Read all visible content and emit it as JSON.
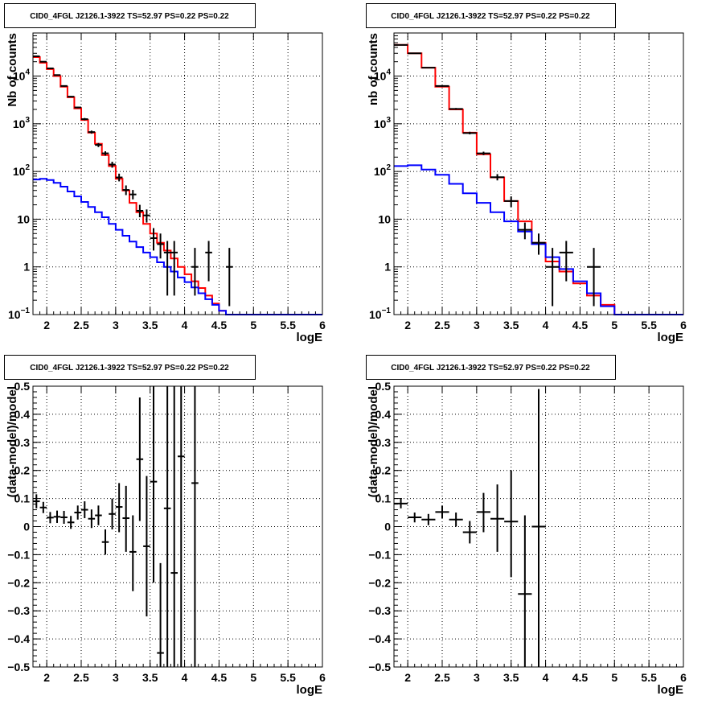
{
  "chart_data": [
    {
      "type": "line",
      "title": "CID0_4FGL J2126.1-3922 TS=52.97 PS=0.22 PS=0.22",
      "xlabel": "logE",
      "ylabel": "Nb of counts",
      "xlim": [
        1.8,
        6.0
      ],
      "ylim": [
        0.1,
        80000
      ],
      "yscale": "log",
      "grid": true,
      "xticks": [
        "2",
        "2.5",
        "3",
        "3.5",
        "4",
        "4.5",
        "5",
        "5.5",
        "6"
      ],
      "yticks": [
        "10⁻¹",
        "1",
        "10",
        "10²",
        "10³",
        "10⁴"
      ],
      "series": [
        {
          "color": "#ff0000",
          "style": "step",
          "edges": [
            1.8,
            1.9,
            2.0,
            2.1,
            2.2,
            2.3,
            2.4,
            2.5,
            2.6,
            2.7,
            2.8,
            2.9,
            3.0,
            3.1,
            3.2,
            3.3,
            3.4,
            3.5,
            3.6,
            3.7,
            3.8,
            3.9,
            4.0,
            4.1,
            4.2,
            4.3,
            4.4,
            4.5,
            4.6,
            4.7,
            4.8,
            4.9,
            5.0,
            5.5,
            6.0
          ],
          "values": [
            25000,
            19000,
            14000,
            10000,
            6000,
            3600,
            2100,
            1200,
            650,
            380,
            220,
            130,
            70,
            40,
            22,
            14,
            8,
            5,
            3.2,
            2.2,
            1.5,
            1.0,
            0.7,
            0.5,
            0.36,
            0.25,
            0.17,
            0.12,
            0.1,
            0.1,
            0.1,
            0.1,
            0.1,
            0.1
          ]
        },
        {
          "color": "#0000ff",
          "style": "step",
          "edges": [
            1.8,
            1.9,
            2.0,
            2.1,
            2.2,
            2.3,
            2.4,
            2.5,
            2.6,
            2.7,
            2.8,
            2.9,
            3.0,
            3.1,
            3.2,
            3.3,
            3.4,
            3.5,
            3.6,
            3.7,
            3.8,
            3.9,
            4.0,
            4.1,
            4.2,
            4.3,
            4.4,
            4.5,
            4.6,
            4.7,
            4.8,
            4.9,
            5.0,
            5.5,
            6.0
          ],
          "values": [
            68,
            70,
            66,
            58,
            48,
            38,
            30,
            23,
            18,
            14,
            11,
            8,
            6,
            4.5,
            3.4,
            2.6,
            2.0,
            1.6,
            1.25,
            1.0,
            0.8,
            0.6,
            0.48,
            0.37,
            0.28,
            0.21,
            0.16,
            0.12,
            0.1,
            0.1,
            0.1,
            0.1,
            0.1,
            0.1
          ]
        },
        {
          "color": "#000000",
          "style": "errorbar",
          "points": [
            {
              "x": 1.85,
              "y": 26000,
              "dx": 0.05,
              "ylo": 25500,
              "yhi": 26500
            },
            {
              "x": 1.95,
              "y": 20000,
              "dx": 0.05,
              "ylo": 19600,
              "yhi": 20400
            },
            {
              "x": 2.05,
              "y": 14500,
              "dx": 0.05,
              "ylo": 14200,
              "yhi": 14800
            },
            {
              "x": 2.15,
              "y": 10500,
              "dx": 0.05,
              "ylo": 10200,
              "yhi": 10800
            },
            {
              "x": 2.25,
              "y": 6200,
              "dx": 0.05,
              "ylo": 6000,
              "yhi": 6400
            },
            {
              "x": 2.35,
              "y": 3700,
              "dx": 0.05,
              "ylo": 3580,
              "yhi": 3820
            },
            {
              "x": 2.45,
              "y": 2200,
              "dx": 0.05,
              "ylo": 2110,
              "yhi": 2290
            },
            {
              "x": 2.55,
              "y": 1250,
              "dx": 0.05,
              "ylo": 1180,
              "yhi": 1320
            },
            {
              "x": 2.65,
              "y": 670,
              "dx": 0.05,
              "ylo": 620,
              "yhi": 720
            },
            {
              "x": 2.75,
              "y": 360,
              "dx": 0.05,
              "ylo": 325,
              "yhi": 395
            },
            {
              "x": 2.85,
              "y": 240,
              "dx": 0.05,
              "ylo": 215,
              "yhi": 265
            },
            {
              "x": 2.95,
              "y": 140,
              "dx": 0.05,
              "ylo": 120,
              "yhi": 160
            },
            {
              "x": 3.05,
              "y": 75,
              "dx": 0.05,
              "ylo": 62,
              "yhi": 90
            },
            {
              "x": 3.15,
              "y": 41,
              "dx": 0.05,
              "ylo": 32,
              "yhi": 51
            },
            {
              "x": 3.25,
              "y": 33,
              "dx": 0.05,
              "ylo": 26,
              "yhi": 41
            },
            {
              "x": 3.35,
              "y": 15,
              "dx": 0.05,
              "ylo": 11,
              "yhi": 20
            },
            {
              "x": 3.45,
              "y": 12,
              "dx": 0.05,
              "ylo": 8.5,
              "yhi": 16
            },
            {
              "x": 3.55,
              "y": 4,
              "dx": 0.05,
              "ylo": 2.2,
              "yhi": 6.5
            },
            {
              "x": 3.65,
              "y": 3,
              "dx": 0.05,
              "ylo": 1.5,
              "yhi": 5
            },
            {
              "x": 3.75,
              "y": 2,
              "dx": 0.05,
              "ylo": 0.25,
              "yhi": 3.5
            },
            {
              "x": 3.85,
              "y": 2,
              "dx": 0.05,
              "ylo": 0.25,
              "yhi": 3.5
            },
            {
              "x": 4.15,
              "y": 1,
              "dx": 0.05,
              "ylo": 0.25,
              "yhi": 2.5
            },
            {
              "x": 4.35,
              "y": 2,
              "dx": 0.05,
              "ylo": 0.5,
              "yhi": 3.5
            },
            {
              "x": 4.65,
              "y": 1,
              "dx": 0.05,
              "ylo": 0.15,
              "yhi": 2.5
            }
          ]
        }
      ]
    },
    {
      "type": "line",
      "title": "CID0_4FGL J2126.1-3922 TS=52.97 PS=0.22 PS=0.22",
      "xlabel": "logE",
      "ylabel": "nb of counts",
      "xlim": [
        1.8,
        6.0
      ],
      "ylim": [
        0.1,
        80000
      ],
      "yscale": "log",
      "grid": true,
      "xticks": [
        "2",
        "2.5",
        "3",
        "3.5",
        "4",
        "4.5",
        "5",
        "5.5",
        "6"
      ],
      "yticks": [
        "10⁻¹",
        "1",
        "10",
        "10²",
        "10³",
        "10⁴"
      ],
      "series": [
        {
          "color": "#ff0000",
          "style": "step",
          "edges": [
            1.8,
            2.0,
            2.2,
            2.4,
            2.6,
            2.8,
            3.0,
            3.2,
            3.4,
            3.6,
            3.8,
            4.0,
            4.2,
            4.4,
            4.6,
            4.8,
            5.0,
            6.0
          ],
          "values": [
            45000,
            30000,
            15000,
            6000,
            2000,
            650,
            230,
            75,
            24,
            9,
            3.2,
            1.3,
            0.8,
            0.45,
            0.25,
            0.16,
            0.1
          ]
        },
        {
          "color": "#0000ff",
          "style": "step",
          "edges": [
            1.8,
            2.0,
            2.2,
            2.4,
            2.6,
            2.8,
            3.0,
            3.2,
            3.4,
            3.6,
            3.8,
            4.0,
            4.2,
            4.4,
            4.6,
            4.8,
            5.0,
            6.0
          ],
          "values": [
            130,
            135,
            110,
            85,
            55,
            35,
            22,
            14,
            9,
            5.5,
            3.0,
            1.6,
            0.9,
            0.5,
            0.28,
            0.15,
            0.1
          ]
        },
        {
          "color": "#000000",
          "style": "errorbar",
          "points": [
            {
              "x": 1.9,
              "y": 45000,
              "dx": 0.1,
              "ylo": 44500,
              "yhi": 45500
            },
            {
              "x": 2.1,
              "y": 30000,
              "dx": 0.1,
              "ylo": 29600,
              "yhi": 30400
            },
            {
              "x": 2.3,
              "y": 15000,
              "dx": 0.1,
              "ylo": 14700,
              "yhi": 15300
            },
            {
              "x": 2.5,
              "y": 6200,
              "dx": 0.1,
              "ylo": 6000,
              "yhi": 6400
            },
            {
              "x": 2.7,
              "y": 2050,
              "dx": 0.1,
              "ylo": 1960,
              "yhi": 2140
            },
            {
              "x": 2.9,
              "y": 640,
              "dx": 0.1,
              "ylo": 600,
              "yhi": 680
            },
            {
              "x": 3.1,
              "y": 240,
              "dx": 0.1,
              "ylo": 220,
              "yhi": 260
            },
            {
              "x": 3.3,
              "y": 76,
              "dx": 0.1,
              "ylo": 65,
              "yhi": 88
            },
            {
              "x": 3.5,
              "y": 24,
              "dx": 0.1,
              "ylo": 18,
              "yhi": 30
            },
            {
              "x": 3.7,
              "y": 6,
              "dx": 0.1,
              "ylo": 3.8,
              "yhi": 8.5
            },
            {
              "x": 3.9,
              "y": 3.2,
              "dx": 0.1,
              "ylo": 1.8,
              "yhi": 5
            },
            {
              "x": 4.1,
              "y": 1,
              "dx": 0.1,
              "ylo": 0.15,
              "yhi": 2.5
            },
            {
              "x": 4.3,
              "y": 2,
              "dx": 0.1,
              "ylo": 0.5,
              "yhi": 3.5
            },
            {
              "x": 4.7,
              "y": 1,
              "dx": 0.1,
              "ylo": 0.15,
              "yhi": 2.5
            }
          ]
        }
      ]
    },
    {
      "type": "scatter",
      "title": "CID0_4FGL J2126.1-3922 TS=52.97 PS=0.22 PS=0.22",
      "xlabel": "logE",
      "ylabel": "(data-model)/model",
      "xlim": [
        1.8,
        6.0
      ],
      "ylim": [
        -0.5,
        0.5
      ],
      "grid": true,
      "xticks": [
        "2",
        "2.5",
        "3",
        "3.5",
        "4",
        "4.5",
        "5",
        "5.5",
        "6"
      ],
      "yticks": [
        "−0.5",
        "−0.4",
        "−0.3",
        "−0.2",
        "−0.1",
        "0",
        "0.1",
        "0.2",
        "0.3",
        "0.4",
        "0.5"
      ],
      "series": [
        {
          "color": "#000000",
          "style": "errorbar",
          "points": [
            {
              "x": 1.85,
              "y": 0.09,
              "dx": 0.05,
              "ylo": 0.065,
              "yhi": 0.115
            },
            {
              "x": 1.95,
              "y": 0.068,
              "dx": 0.05,
              "ylo": 0.048,
              "yhi": 0.088
            },
            {
              "x": 2.05,
              "y": 0.032,
              "dx": 0.05,
              "ylo": 0.012,
              "yhi": 0.052
            },
            {
              "x": 2.15,
              "y": 0.035,
              "dx": 0.05,
              "ylo": 0.013,
              "yhi": 0.057
            },
            {
              "x": 2.25,
              "y": 0.033,
              "dx": 0.05,
              "ylo": 0.01,
              "yhi": 0.056
            },
            {
              "x": 2.35,
              "y": 0.015,
              "dx": 0.05,
              "ylo": -0.008,
              "yhi": 0.038
            },
            {
              "x": 2.45,
              "y": 0.05,
              "dx": 0.05,
              "ylo": 0.025,
              "yhi": 0.075
            },
            {
              "x": 2.55,
              "y": 0.06,
              "dx": 0.05,
              "ylo": 0.03,
              "yhi": 0.09
            },
            {
              "x": 2.65,
              "y": 0.028,
              "dx": 0.05,
              "ylo": -0.005,
              "yhi": 0.061
            },
            {
              "x": 2.75,
              "y": 0.04,
              "dx": 0.05,
              "ylo": 0.005,
              "yhi": 0.075
            },
            {
              "x": 2.85,
              "y": -0.055,
              "dx": 0.05,
              "ylo": -0.1,
              "yhi": -0.01
            },
            {
              "x": 2.95,
              "y": 0.045,
              "dx": 0.05,
              "ylo": -0.01,
              "yhi": 0.1
            },
            {
              "x": 3.05,
              "y": 0.07,
              "dx": 0.05,
              "ylo": -0.02,
              "yhi": 0.155
            },
            {
              "x": 3.15,
              "y": 0.03,
              "dx": 0.05,
              "ylo": -0.09,
              "yhi": 0.145
            },
            {
              "x": 3.25,
              "y": -0.09,
              "dx": 0.05,
              "ylo": -0.23,
              "yhi": 0.04
            },
            {
              "x": 3.35,
              "y": 0.24,
              "dx": 0.05,
              "ylo": 0.02,
              "yhi": 0.46
            },
            {
              "x": 3.45,
              "y": -0.07,
              "dx": 0.05,
              "ylo": -0.32,
              "yhi": 0.18
            },
            {
              "x": 3.55,
              "y": 0.16,
              "dx": 0.05,
              "ylo": -0.2,
              "yhi": 0.5
            },
            {
              "x": 3.65,
              "y": -0.45,
              "dx": 0.05,
              "ylo": -0.5,
              "yhi": -0.13
            },
            {
              "x": 3.75,
              "y": 0.065,
              "dx": 0.05,
              "ylo": -0.5,
              "yhi": 0.5
            },
            {
              "x": 3.85,
              "y": -0.165,
              "dx": 0.05,
              "ylo": -0.5,
              "yhi": 0.5
            },
            {
              "x": 3.95,
              "y": 0.25,
              "dx": 0.05,
              "ylo": -0.5,
              "yhi": 0.5
            },
            {
              "x": 4.15,
              "y": 0.155,
              "dx": 0.05,
              "ylo": -0.5,
              "yhi": 0.5
            }
          ]
        }
      ]
    },
    {
      "type": "scatter",
      "title": "CID0_4FGL J2126.1-3922 TS=52.97 PS=0.22 PS=0.22",
      "xlabel": "logE",
      "ylabel": "(data-model)/model",
      "xlim": [
        1.8,
        6.0
      ],
      "ylim": [
        -0.5,
        0.5
      ],
      "grid": true,
      "xticks": [
        "2",
        "2.5",
        "3",
        "3.5",
        "4",
        "4.5",
        "5",
        "5.5",
        "6"
      ],
      "yticks": [
        "−0.5",
        "−0.4",
        "−0.3",
        "−0.2",
        "−0.1",
        "0",
        "0.1",
        "0.2",
        "0.3",
        "0.4",
        "0.5"
      ],
      "series": [
        {
          "color": "#000000",
          "style": "errorbar",
          "points": [
            {
              "x": 1.9,
              "y": 0.082,
              "dx": 0.1,
              "ylo": 0.065,
              "yhi": 0.1
            },
            {
              "x": 2.1,
              "y": 0.033,
              "dx": 0.1,
              "ylo": 0.015,
              "yhi": 0.05
            },
            {
              "x": 2.3,
              "y": 0.025,
              "dx": 0.1,
              "ylo": 0.005,
              "yhi": 0.045
            },
            {
              "x": 2.5,
              "y": 0.052,
              "dx": 0.1,
              "ylo": 0.03,
              "yhi": 0.074
            },
            {
              "x": 2.7,
              "y": 0.025,
              "dx": 0.1,
              "ylo": 0.0,
              "yhi": 0.05
            },
            {
              "x": 2.9,
              "y": -0.02,
              "dx": 0.1,
              "ylo": -0.06,
              "yhi": 0.02
            },
            {
              "x": 3.1,
              "y": 0.052,
              "dx": 0.1,
              "ylo": -0.02,
              "yhi": 0.12
            },
            {
              "x": 3.3,
              "y": 0.028,
              "dx": 0.1,
              "ylo": -0.09,
              "yhi": 0.15
            },
            {
              "x": 3.5,
              "y": 0.018,
              "dx": 0.1,
              "ylo": -0.18,
              "yhi": 0.2
            },
            {
              "x": 3.7,
              "y": -0.24,
              "dx": 0.1,
              "ylo": -0.5,
              "yhi": 0.04
            },
            {
              "x": 3.9,
              "y": 0.0,
              "dx": 0.1,
              "ylo": -0.5,
              "yhi": 0.49
            }
          ]
        }
      ]
    }
  ]
}
